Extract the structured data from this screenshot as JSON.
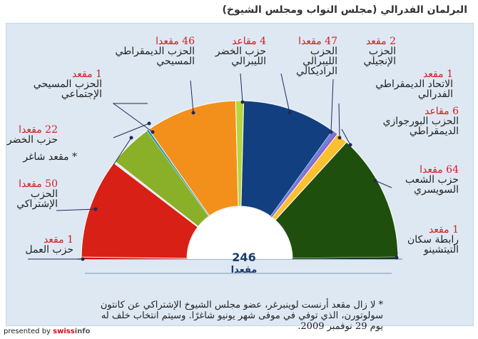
{
  "title": "البرلمان الفدرالي (مجلس النواب ومجلس الشيوخ)",
  "center": {
    "number": "246",
    "unit": "مقعدا"
  },
  "footnote": "* لا زال مقعد أرنست لوينبرغر، عضو مجلس الشيوخ الإشتراكي عن كانتون سولوتورن، الذي توفي في موفى شهر يونيو شاغرًا. وسيتم انتخاب خلف له يوم 29 نوفمبر 2009.",
  "footer": {
    "prefix": "presented by",
    "brand": "swiss",
    "brand2": "info"
  },
  "colors": {
    "panel_bg": "#dde8f3",
    "seats_text": "#d02020",
    "center_text": "#1a3a6e"
  },
  "chart_data": {
    "type": "pie",
    "layout": "semicircle",
    "total_label": "246",
    "slices": [
      {
        "seats_label": "1 مقعد",
        "name": "حزب العمل",
        "value": 1,
        "color": "#c0141a"
      },
      {
        "seats_label": "50 مقعدا",
        "name": "الحزب الإشتراكي",
        "value": 50,
        "color": "#d82016"
      },
      {
        "seats_label": "",
        "name": "* مقعد شاغر",
        "value": 1,
        "color": "#dde8f3"
      },
      {
        "seats_label": "22 مقعدا",
        "name": "حزب الخضر",
        "value": 22,
        "color": "#8ab02a"
      },
      {
        "seats_label": "1 مقعد",
        "name": "الحزب المسيحي الإجتماعي",
        "value": 1,
        "color": "#1a8fb0"
      },
      {
        "seats_label": "46 مقعدا",
        "name": "الحزب الديمقراطي المسيحي",
        "value": 46,
        "color": "#f3901c"
      },
      {
        "seats_label": "4 مقاعد",
        "name": "حزب الخضر الليبرالي",
        "value": 4,
        "color": "#b5d640"
      },
      {
        "seats_label": "47 مقعدا",
        "name": "الحزب الليبرالي الراديكالي",
        "value": 47,
        "color": "#123f80"
      },
      {
        "seats_label": "2 مقعد",
        "name": "الحزب الإنجيلي",
        "value": 2,
        "color": "#6d7fd8"
      },
      {
        "seats_label": "1 مقعد",
        "name": "الاتحاد الديمقراطي الفدرالي",
        "value": 1,
        "color": "#9a4fc4"
      },
      {
        "seats_label": "6 مقاعد",
        "name": "الحزب البورجوازي الديمقراطي",
        "value": 6,
        "color": "#fbc030"
      },
      {
        "seats_label": "64 مقعدا",
        "name": "حزب الشعب السويسري",
        "value": 64,
        "color": "#1f4f0c"
      },
      {
        "seats_label": "1 مقعد",
        "name": "رابطة سكان التيتشينو",
        "value": 1,
        "color": "#103a1a"
      }
    ]
  }
}
